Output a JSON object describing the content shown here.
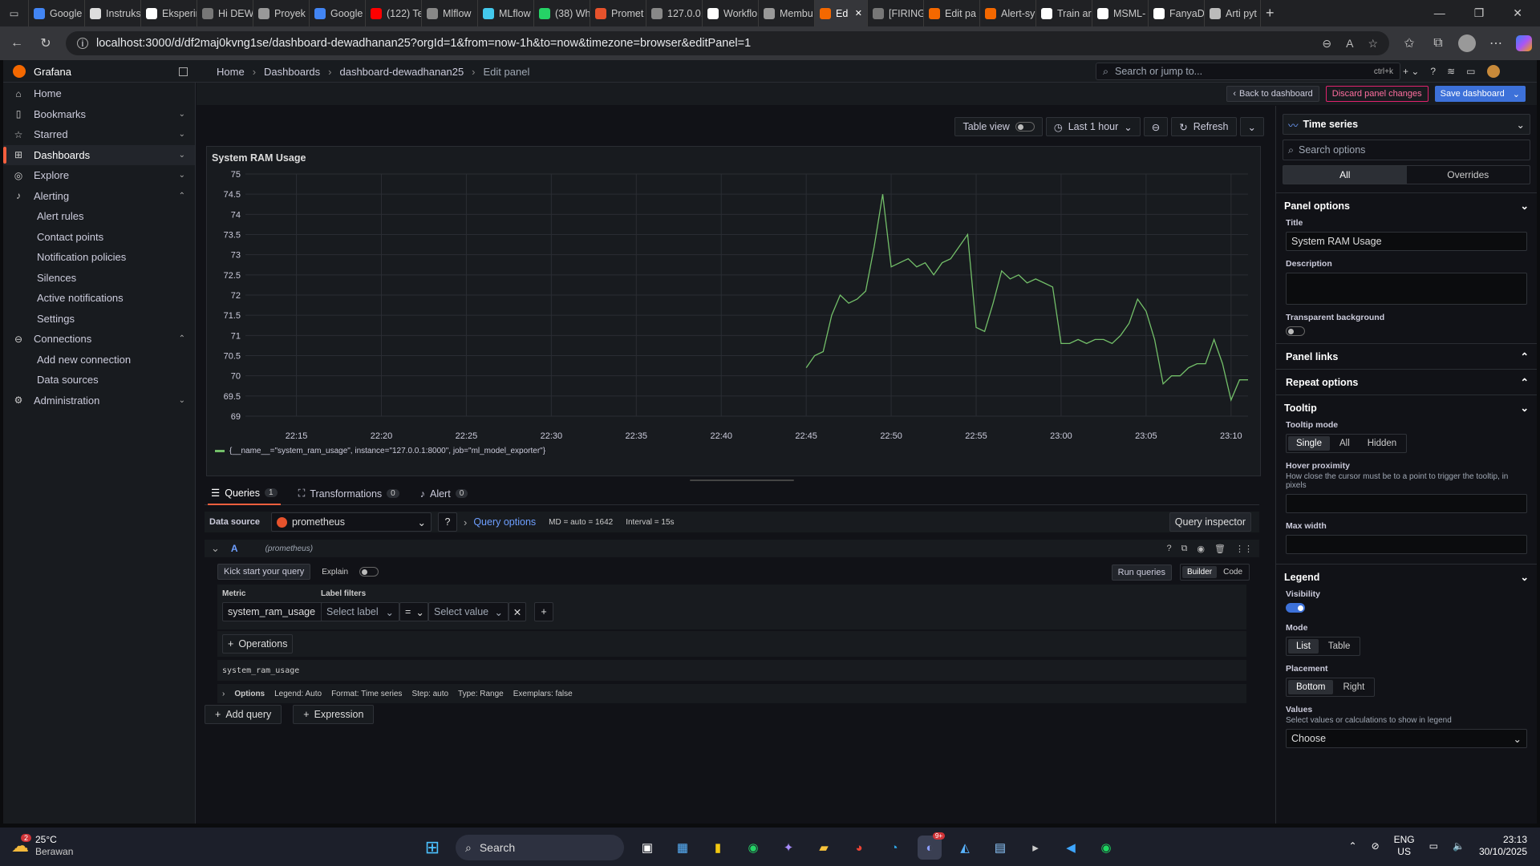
{
  "browser": {
    "tabs": [
      {
        "label": "Google",
        "color": "#4285f4"
      },
      {
        "label": "Instruks",
        "color": "#dddddd"
      },
      {
        "label": "Eksperin",
        "color": "#ffffff"
      },
      {
        "label": "Hi DEW",
        "color": "#777777"
      },
      {
        "label": "Proyek",
        "color": "#999999"
      },
      {
        "label": "Google",
        "color": "#4285f4"
      },
      {
        "label": "(122) Te",
        "color": "#ff0000"
      },
      {
        "label": "Mlflow",
        "color": "#888888"
      },
      {
        "label": "MLflow",
        "color": "#43c9ed"
      },
      {
        "label": "(38) Wh",
        "color": "#25d366"
      },
      {
        "label": "Promet",
        "color": "#e6522c"
      },
      {
        "label": "127.0.0.",
        "color": "#888888"
      },
      {
        "label": "Workflo",
        "color": "#ffffff"
      },
      {
        "label": "Membu",
        "color": "#999999"
      },
      {
        "label": "Ed",
        "color": "#f46800",
        "active": true
      },
      {
        "label": "[FIRING",
        "color": "#777777"
      },
      {
        "label": "Edit pa",
        "color": "#f46800"
      },
      {
        "label": "Alert-sy",
        "color": "#f46800"
      },
      {
        "label": "Train ar",
        "color": "#ffffff"
      },
      {
        "label": "MSML-",
        "color": "#ffffff"
      },
      {
        "label": "FanyaD",
        "color": "#ffffff"
      },
      {
        "label": "Arti pyt",
        "color": "#bbbbbb"
      }
    ],
    "url": "localhost:3000/d/df2maj0kvng1se/dashboard-dewadhanan25?orgId=1&from=now-1h&to=now&timezone=browser&editPanel=1"
  },
  "app": {
    "name": "Grafana",
    "breadcrumbs": [
      "Home",
      "Dashboards",
      "dashboard-dewadhanan25",
      "Edit panel"
    ],
    "search_placeholder": "Search or jump to...",
    "search_kbd": "ctrl+k"
  },
  "sidebar": {
    "items": [
      {
        "label": "Home",
        "icon": "home-icon",
        "glyph": "⌂"
      },
      {
        "label": "Bookmarks",
        "icon": "bookmark-icon",
        "glyph": "▯",
        "chev": "⌄"
      },
      {
        "label": "Starred",
        "icon": "star-icon",
        "glyph": "☆",
        "chev": "⌄"
      },
      {
        "label": "Dashboards",
        "icon": "dashboards-icon",
        "glyph": "⊞",
        "chev": "⌄",
        "active": true
      },
      {
        "label": "Explore",
        "icon": "explore-icon",
        "glyph": "◎",
        "chev": "⌄"
      },
      {
        "label": "Alerting",
        "icon": "bell-icon",
        "glyph": "♪",
        "chev": "⌃"
      },
      {
        "label": "Alert rules",
        "sub": true
      },
      {
        "label": "Contact points",
        "sub": true
      },
      {
        "label": "Notification policies",
        "sub": true
      },
      {
        "label": "Silences",
        "sub": true
      },
      {
        "label": "Active notifications",
        "sub": true
      },
      {
        "label": "Settings",
        "sub": true
      },
      {
        "label": "Connections",
        "icon": "connections-icon",
        "glyph": "⊖",
        "chev": "⌃"
      },
      {
        "label": "Add new connection",
        "sub": true
      },
      {
        "label": "Data sources",
        "sub": true
      },
      {
        "label": "Administration",
        "icon": "gear-icon",
        "glyph": "⚙",
        "chev": "⌄"
      }
    ]
  },
  "editbar": {
    "back": "Back to dashboard",
    "discard": "Discard panel changes",
    "save": "Save dashboard"
  },
  "toolbar": {
    "table_view": "Table view",
    "time_range": "Last 1 hour",
    "refresh": "Refresh"
  },
  "panel": {
    "title": "System RAM Usage",
    "legend": "{__name__=\"system_ram_usage\", instance=\"127.0.0.1:8000\", job=\"ml_model_exporter\"}"
  },
  "chart_data": {
    "type": "line",
    "title": "System RAM Usage",
    "xlabel": "",
    "ylabel": "",
    "ylim": [
      69,
      75
    ],
    "yticks": [
      "75",
      "74.5",
      "74",
      "73.5",
      "73",
      "72.5",
      "72",
      "71.5",
      "71",
      "70.5",
      "70",
      "69.5",
      "69"
    ],
    "xticks": [
      "22:15",
      "22:20",
      "22:25",
      "22:30",
      "22:35",
      "22:40",
      "22:45",
      "22:50",
      "22:55",
      "23:00",
      "23:05",
      "23:10"
    ],
    "xrange": [
      "22:12",
      "23:11"
    ],
    "grid": true,
    "legend_position": "bottom",
    "series": [
      {
        "color": "#73bf69",
        "x": [
          "22:45",
          "22:45.5",
          "22:46",
          "22:46.5",
          "22:47",
          "22:47.5",
          "22:48",
          "22:48.5",
          "22:49",
          "22:49.5",
          "22:50",
          "22:50.5",
          "22:51",
          "22:51.5",
          "22:52",
          "22:52.5",
          "22:53",
          "22:53.5",
          "22:54",
          "22:54.5",
          "22:55",
          "22:55.5",
          "22:56",
          "22:56.5",
          "22:57",
          "22:57.5",
          "22:58",
          "22:58.5",
          "22:59",
          "22:59.5",
          "23:00",
          "23:00.5",
          "23:01",
          "23:01.5",
          "23:02",
          "23:02.5",
          "23:03",
          "23:03.5",
          "23:04",
          "23:04.5",
          "23:05",
          "23:05.5",
          "23:06",
          "23:06.5",
          "23:07",
          "23:07.5",
          "23:08",
          "23:08.5",
          "23:09",
          "23:09.5",
          "23:10",
          "23:10.5",
          "23:11"
        ],
        "values": [
          70.2,
          70.5,
          70.6,
          71.5,
          72.0,
          71.8,
          71.9,
          72.1,
          73.2,
          74.5,
          72.7,
          72.8,
          72.9,
          72.7,
          72.8,
          72.5,
          72.8,
          72.9,
          73.2,
          73.5,
          71.2,
          71.1,
          71.8,
          72.6,
          72.4,
          72.5,
          72.3,
          72.4,
          72.3,
          72.2,
          70.8,
          70.8,
          70.9,
          70.8,
          70.9,
          70.9,
          70.8,
          71.0,
          71.3,
          71.9,
          71.6,
          70.9,
          69.8,
          70.0,
          70.0,
          70.2,
          70.3,
          70.3,
          70.9,
          70.3,
          69.4,
          69.9,
          69.9
        ]
      }
    ]
  },
  "query": {
    "tabs": [
      {
        "label": "Queries",
        "count": "1",
        "icon": "database-icon",
        "glyph": "☰"
      },
      {
        "label": "Transformations",
        "count": "0",
        "icon": "transform-icon",
        "glyph": "⛶"
      },
      {
        "label": "Alert",
        "count": "0",
        "icon": "bell-icon",
        "glyph": "♪"
      }
    ],
    "datasource_label": "Data source",
    "datasource": "prometheus",
    "query_options": "Query options",
    "md": "MD = auto = 1642",
    "interval": "Interval = 15s",
    "inspector": "Query inspector",
    "ref": "A",
    "ref_ds": "(prometheus)",
    "kick_start": "Kick start your query",
    "explain": "Explain",
    "run": "Run queries",
    "builder": "Builder",
    "code": "Code",
    "metric_label": "Metric",
    "metric": "system_ram_usage",
    "label_filters": "Label filters",
    "select_label": "Select label",
    "op": "=",
    "select_value": "Select value",
    "operations": "Operations",
    "preview": "system_ram_usage",
    "options_label": "Options",
    "options_summary": [
      "Legend: Auto",
      "Format: Time series",
      "Step: auto",
      "Type: Range",
      "Exemplars: false"
    ],
    "add_query": "Add query",
    "expression": "Expression"
  },
  "options": {
    "viz": "Time series",
    "search_placeholder": "Search options",
    "tab_all": "All",
    "tab_overrides": "Overrides",
    "panel_options": "Panel options",
    "title_label": "Title",
    "title_value": "System RAM Usage",
    "description_label": "Description",
    "transparent_label": "Transparent background",
    "panel_links": "Panel links",
    "repeat_options": "Repeat options",
    "tooltip": "Tooltip",
    "tooltip_mode": "Tooltip mode",
    "tooltip_modes": [
      "Single",
      "All",
      "Hidden"
    ],
    "hover_proximity": "Hover proximity",
    "hover_desc": "How close the cursor must be to a point to trigger the tooltip, in pixels",
    "max_width": "Max width",
    "legend": "Legend",
    "visibility": "Visibility",
    "mode": "Mode",
    "modes": [
      "List",
      "Table"
    ],
    "placement": "Placement",
    "placements": [
      "Bottom",
      "Right"
    ],
    "values": "Values",
    "values_desc": "Select values or calculations to show in legend",
    "choose": "Choose"
  },
  "taskbar": {
    "weather_temp": "25°C",
    "weather_desc": "Berawan",
    "weather_badge": "2",
    "search": "Search",
    "lang1": "ENG",
    "lang2": "US",
    "time": "23:13",
    "date": "30/10/2025",
    "discord_badge": "9+"
  }
}
